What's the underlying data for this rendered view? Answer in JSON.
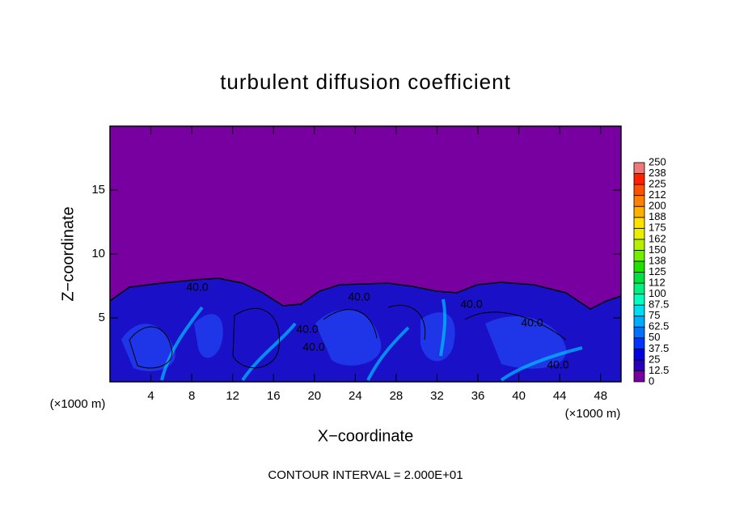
{
  "chart_data": {
    "type": "contour",
    "title": "turbulent diffusion coefficient",
    "x_label": "X−coordinate",
    "y_label": "Z−coordinate",
    "x_unit": "(×1000 m)",
    "footnote": "CONTOUR INTERVAL = 2.000E+01",
    "xlim": [
      0,
      50
    ],
    "ylim": [
      0,
      20
    ],
    "xticks": [
      4,
      8,
      12,
      16,
      20,
      24,
      28,
      32,
      36,
      40,
      44,
      48
    ],
    "yticks": [
      5,
      10,
      15
    ],
    "contour_labels": [
      "40.0",
      "40.0",
      "40.0",
      "40.0",
      "40.0",
      "40.0",
      "40.0"
    ],
    "colorbar": {
      "levels": [
        0,
        12.5,
        25,
        37.5,
        50,
        62.5,
        75,
        87.5,
        100,
        {
          "value": 112.5,
          "label": "112"
        },
        125,
        {
          "value": 137.5,
          "label": "138"
        },
        150,
        {
          "value": 162.5,
          "label": "162"
        },
        175,
        {
          "value": 187.5,
          "label": "188"
        },
        200,
        {
          "value": 212.5,
          "label": "212"
        },
        225,
        {
          "value": 237.5,
          "label": "238"
        },
        250
      ],
      "colors": [
        "#7800a0",
        "#2800b8",
        "#0000e0",
        "#0034ff",
        "#0070ff",
        "#00acff",
        "#00dcf0",
        "#00ffc0",
        "#00f080",
        "#00e040",
        "#20e000",
        "#70f000",
        "#b4f000",
        "#e8f000",
        "#ffe000",
        "#ffb000",
        "#ff8000",
        "#ff5000",
        "#ff2000",
        "#f07878"
      ]
    }
  }
}
